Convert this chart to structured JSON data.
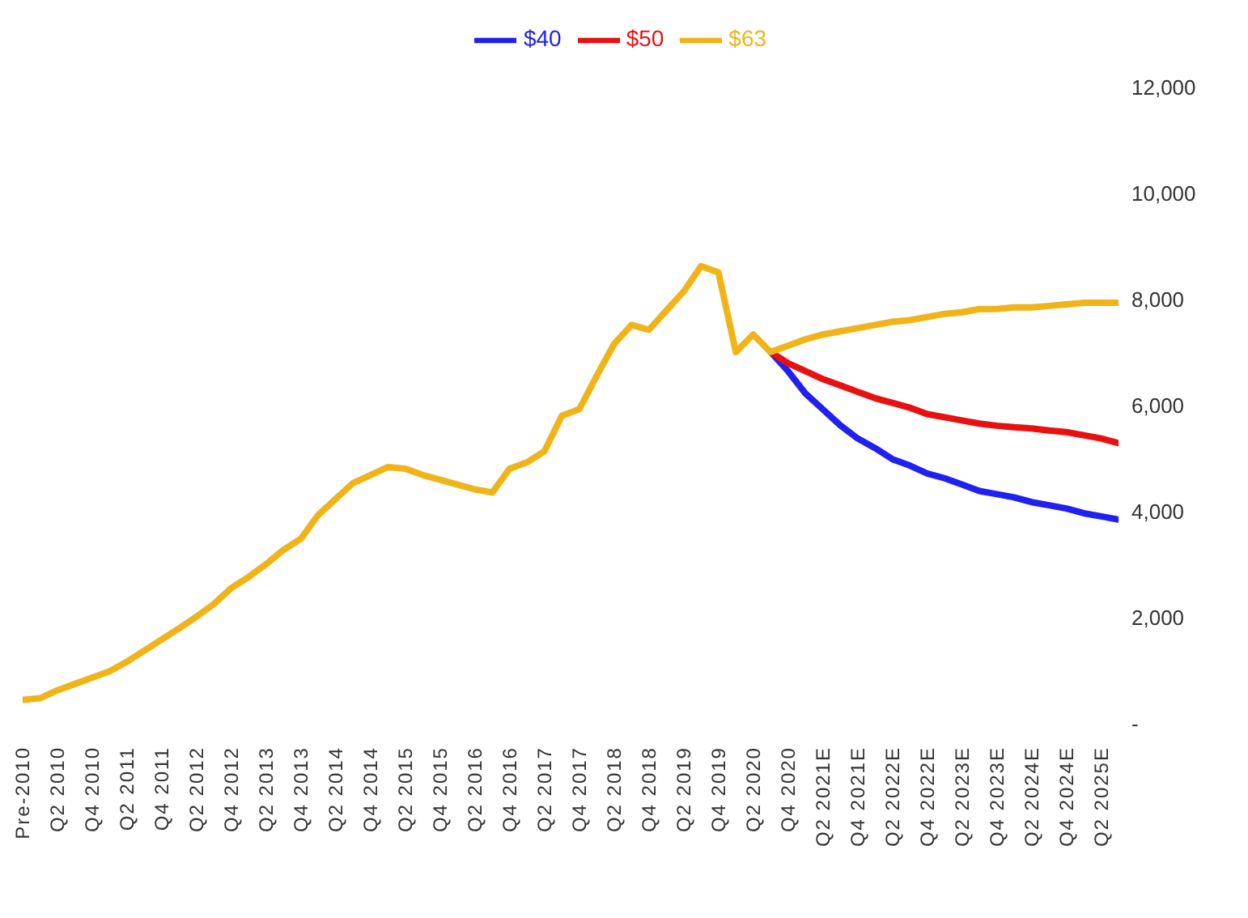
{
  "chart_data": {
    "type": "line",
    "categories": [
      "Pre-2010",
      null,
      "Q2 2010",
      null,
      "Q4 2010",
      null,
      "Q2 2011",
      null,
      "Q4 2011",
      null,
      "Q2 2012",
      null,
      "Q4 2012",
      null,
      "Q2 2013",
      null,
      "Q4 2013",
      null,
      "Q2 2014",
      null,
      "Q4 2014",
      null,
      "Q2 2015",
      null,
      "Q4 2015",
      null,
      "Q2 2016",
      null,
      "Q4 2016",
      null,
      "Q2 2017",
      null,
      "Q4 2017",
      null,
      "Q2 2018",
      null,
      "Q4 2018",
      null,
      "Q2 2019",
      null,
      "Q4 2019",
      null,
      "Q2 2020",
      null,
      "Q4 2020",
      null,
      "Q2 2021E",
      null,
      "Q4 2021E",
      null,
      "Q2 2022E",
      null,
      "Q4 2022E",
      null,
      "Q2 2023E",
      null,
      "Q4 2023E",
      null,
      "Q2 2024E",
      null,
      "Q4 2024E",
      null,
      "Q2 2025E",
      null
    ],
    "series": [
      {
        "name": "$40",
        "color": "#2020f0",
        "values": [
          null,
          null,
          null,
          null,
          null,
          null,
          null,
          null,
          null,
          null,
          null,
          null,
          null,
          null,
          null,
          null,
          null,
          null,
          null,
          null,
          null,
          null,
          null,
          null,
          null,
          null,
          null,
          null,
          null,
          null,
          null,
          null,
          null,
          null,
          null,
          null,
          null,
          null,
          null,
          null,
          null,
          null,
          null,
          7010,
          6650,
          6230,
          5930,
          5630,
          5380,
          5200,
          4990,
          4870,
          4720,
          4630,
          4510,
          4390,
          4330,
          4270,
          4180,
          4120,
          4060,
          3970,
          3910,
          3850
        ]
      },
      {
        "name": "$50",
        "color": "#e81010",
        "values": [
          null,
          null,
          null,
          null,
          null,
          null,
          null,
          null,
          null,
          null,
          null,
          null,
          null,
          null,
          null,
          null,
          null,
          null,
          null,
          null,
          null,
          null,
          null,
          null,
          null,
          null,
          null,
          null,
          null,
          null,
          null,
          null,
          null,
          null,
          null,
          null,
          null,
          null,
          null,
          null,
          null,
          null,
          null,
          7010,
          6800,
          6650,
          6500,
          6380,
          6260,
          6140,
          6050,
          5960,
          5840,
          5780,
          5720,
          5660,
          5620,
          5590,
          5570,
          5530,
          5500,
          5440,
          5380,
          5290
        ]
      },
      {
        "name": "$63",
        "color": "#f0b418",
        "values": [
          450,
          480,
          630,
          750,
          870,
          990,
          1170,
          1380,
          1590,
          1800,
          2020,
          2260,
          2560,
          2770,
          3010,
          3280,
          3490,
          3940,
          4240,
          4540,
          4690,
          4840,
          4810,
          4690,
          4600,
          4510,
          4420,
          4360,
          4810,
          4930,
          5140,
          5810,
          5930,
          6560,
          7160,
          7520,
          7430,
          7790,
          8150,
          8630,
          8510,
          7010,
          7340,
          7010,
          7130,
          7250,
          7340,
          7400,
          7460,
          7520,
          7580,
          7610,
          7670,
          7730,
          7760,
          7820,
          7820,
          7850,
          7850,
          7880,
          7910,
          7940,
          7940,
          7940
        ]
      }
    ],
    "ylim": [
      0,
      12000
    ],
    "yticks": [
      {
        "value": 0,
        "label": "-"
      },
      {
        "value": 2000,
        "label": "2,000"
      },
      {
        "value": 4000,
        "label": "4,000"
      },
      {
        "value": 6000,
        "label": "6,000"
      },
      {
        "value": 8000,
        "label": "8,000"
      },
      {
        "value": 10000,
        "label": "10,000"
      },
      {
        "value": 12000,
        "label": "12,000"
      }
    ],
    "legend": "top",
    "grid": false,
    "marker": "none",
    "line_style": "solid"
  }
}
